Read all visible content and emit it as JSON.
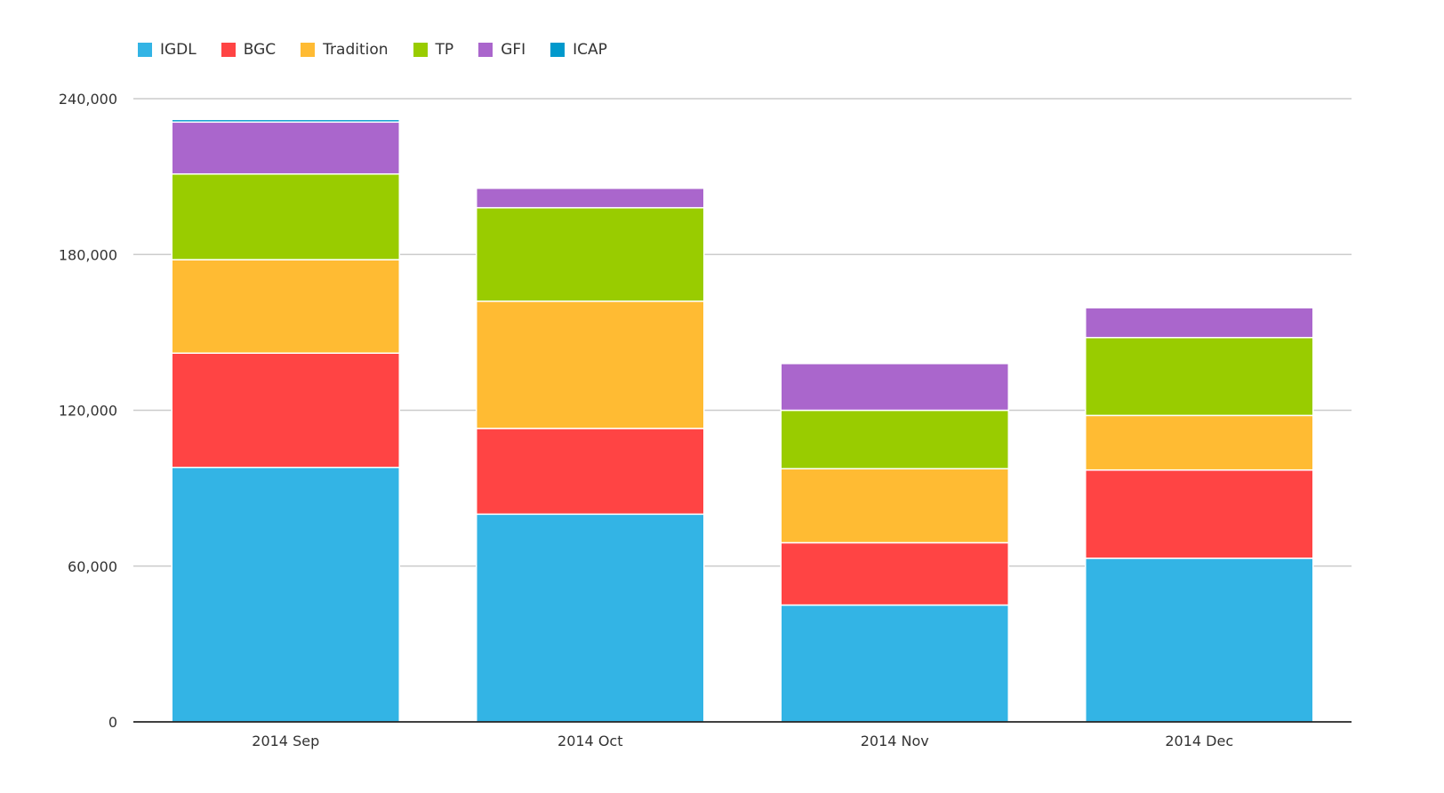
{
  "chart_data": {
    "type": "bar",
    "stacked": true,
    "title": "",
    "xlabel": "",
    "ylabel": "",
    "categories": [
      "2014 Sep",
      "2014 Oct",
      "2014 Nov",
      "2014 Dec"
    ],
    "series": [
      {
        "name": "IGDL",
        "color": "#33b4e5",
        "values": [
          98000,
          80000,
          45000,
          63000
        ]
      },
      {
        "name": "BGC",
        "color": "#ff4444",
        "values": [
          44000,
          33000,
          24000,
          34000
        ]
      },
      {
        "name": "Tradition",
        "color": "#ffbb33",
        "values": [
          36000,
          49000,
          28500,
          21000
        ]
      },
      {
        "name": "TP",
        "color": "#99cc00",
        "values": [
          33000,
          36000,
          22500,
          30000
        ]
      },
      {
        "name": "GFI",
        "color": "#aa66cc",
        "values": [
          20000,
          7500,
          18000,
          11500
        ]
      },
      {
        "name": "ICAP",
        "color": "#0099cc",
        "values": [
          1000,
          0,
          0,
          0
        ]
      }
    ],
    "ylim": [
      0,
      240000
    ],
    "yticks": [
      0,
      60000,
      120000,
      180000,
      240000
    ],
    "ytick_labels": [
      "0",
      "60,000",
      "120,000",
      "180,000",
      "240,000"
    ],
    "grid": true,
    "legend_position": "top-left",
    "colors": {
      "grid": "#cccccc",
      "axis": "#000000",
      "text": "#333333"
    }
  }
}
